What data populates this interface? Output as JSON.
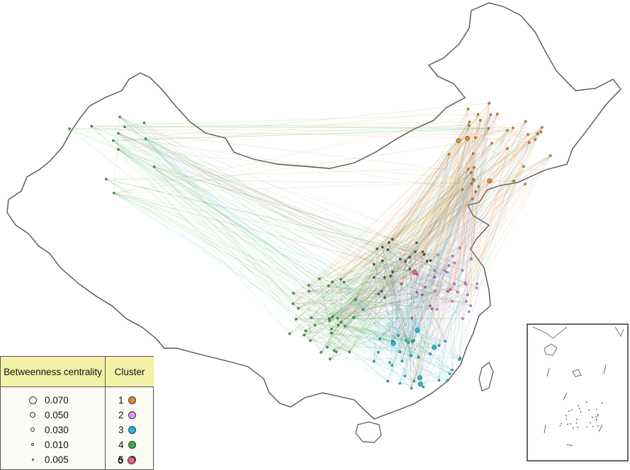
{
  "legend": {
    "betweenness_title": "Betweenness centrality",
    "cluster_title": "Cluster",
    "betweenness_values": [
      "0.070",
      "0.050",
      "0.030",
      "0.010",
      "0.005"
    ],
    "clusters": [
      {
        "id": "1",
        "color": "#e8872a"
      },
      {
        "id": "2",
        "color": "#d79cf0"
      },
      {
        "id": "3",
        "color": "#22b8d8"
      },
      {
        "id": "4",
        "color": "#3fae3f"
      },
      {
        "id": "5",
        "color": "#5a5a52"
      },
      {
        "id": "6",
        "color": "#ef5b93"
      }
    ]
  },
  "colors": {
    "border": "#555555",
    "header_fill": "#f4f0a8"
  }
}
